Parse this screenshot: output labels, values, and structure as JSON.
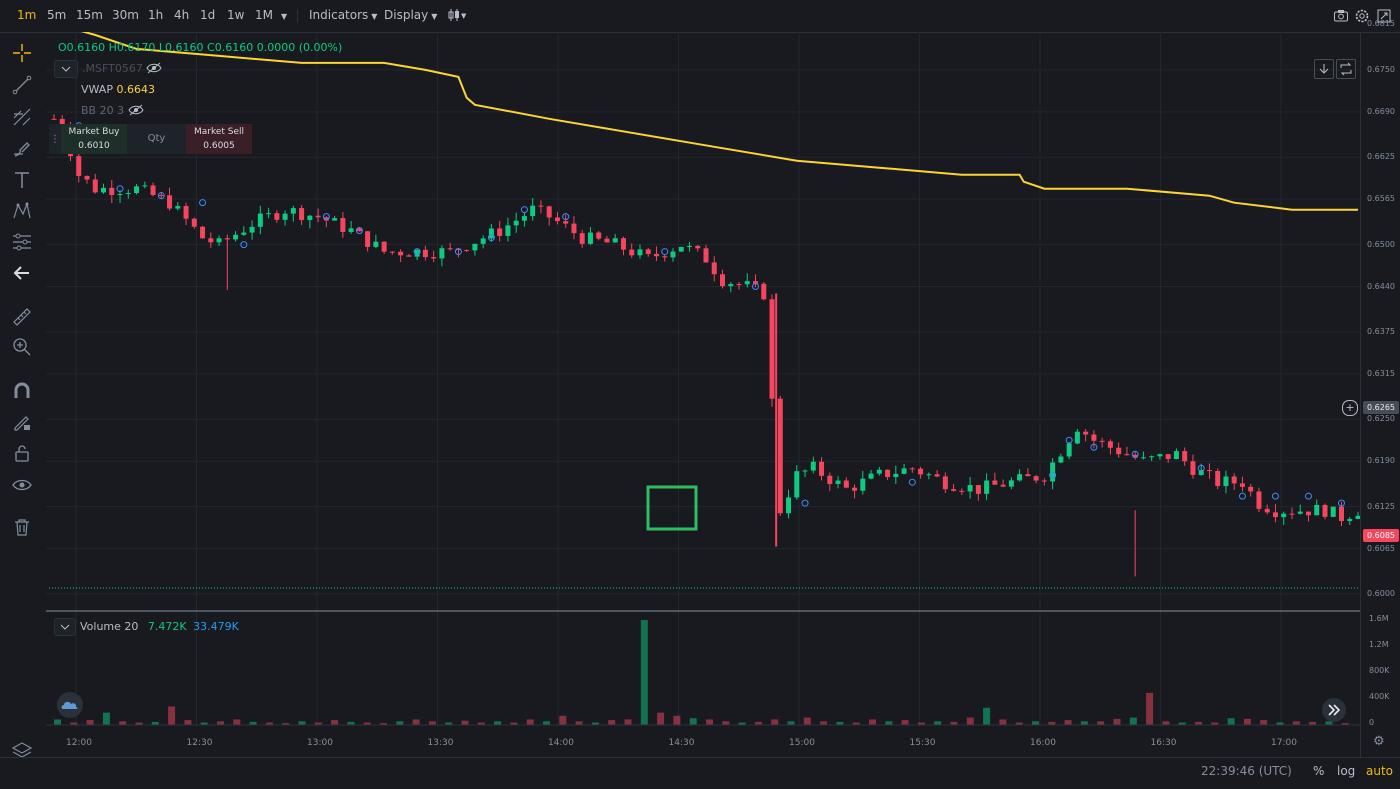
{
  "toolbar": {
    "timeframes": [
      "1m",
      "5m",
      "15m",
      "30m",
      "1h",
      "4h",
      "1d",
      "1w",
      "1M"
    ],
    "active_timeframe": "1m",
    "indicators_label": "Indicators",
    "display_label": "Display"
  },
  "legend": {
    "ohlc": {
      "o": "O0.6160",
      "h": "H0.6170",
      "l": "L0.6160",
      "c": "C0.6160",
      "change": "0.0000 (0.00%)"
    },
    "symbol_faded": ".MSFT0567",
    "vwap_label": "VWAP",
    "vwap_value": "0.6643",
    "bb_label": "BB 20 3"
  },
  "order_panel": {
    "buy_label": "Market Buy",
    "buy_price": "0.6010",
    "qty_label": "Qty",
    "sell_label": "Market Sell",
    "sell_price": "0.6005"
  },
  "volume_legend": {
    "label": "Volume 20",
    "value1": "7.472K",
    "value2": "33.479K"
  },
  "price_axis": {
    "ticks": [
      "0.6815",
      "0.6750",
      "0.6690",
      "0.6625",
      "0.6565",
      "0.6500",
      "0.6440",
      "0.6375",
      "0.6315",
      "0.6250",
      "0.6190",
      "0.6125",
      "0.6065",
      "0.6000"
    ],
    "marker_neutral": "0.6265",
    "marker_last": "0.6085"
  },
  "volume_axis": {
    "ticks": [
      "1.6M",
      "1.2M",
      "800K",
      "400K",
      "0"
    ]
  },
  "time_axis": {
    "ticks": [
      "12:00",
      "12:30",
      "13:00",
      "13:30",
      "14:00",
      "14:30",
      "15:00",
      "15:30",
      "16:00",
      "16:30",
      "17:00"
    ]
  },
  "status": {
    "clock": "22:39:46 (UTC)",
    "percent": "%",
    "log": "log",
    "auto": "auto"
  },
  "colors": {
    "up": "#0ecb81",
    "down": "#f6465d",
    "vwap": "#fcd535",
    "accent": "#f0b90b",
    "background": "#181a20",
    "highlight_box": "#2ebd5f"
  },
  "chart_data": {
    "type": "candlestick",
    "ylim": [
      0.6,
      0.684
    ],
    "vwap_points": [
      [
        0,
        0.682
      ],
      [
        2,
        0.681
      ],
      [
        5,
        0.68
      ],
      [
        10,
        0.678
      ],
      [
        20,
        0.677
      ],
      [
        30,
        0.676
      ],
      [
        40,
        0.676
      ],
      [
        45,
        0.675
      ],
      [
        49,
        0.674
      ],
      [
        50,
        0.671
      ],
      [
        51,
        0.67
      ],
      [
        60,
        0.668
      ],
      [
        70,
        0.666
      ],
      [
        80,
        0.664
      ],
      [
        90,
        0.662
      ],
      [
        100,
        0.661
      ],
      [
        110,
        0.66
      ],
      [
        115,
        0.66
      ],
      [
        117,
        0.66
      ],
      [
        117.5,
        0.659
      ],
      [
        120,
        0.658
      ],
      [
        130,
        0.658
      ],
      [
        140,
        0.657
      ],
      [
        143,
        0.656
      ],
      [
        150,
        0.655
      ],
      [
        158,
        0.655
      ]
    ],
    "close_path": [
      [
        0,
        0.668
      ],
      [
        1,
        0.667
      ],
      [
        3,
        0.66
      ],
      [
        5,
        0.658
      ],
      [
        8,
        0.658
      ],
      [
        10,
        0.658
      ],
      [
        14,
        0.656
      ],
      [
        18,
        0.651
      ],
      [
        20,
        0.65
      ],
      [
        24,
        0.653
      ],
      [
        28,
        0.655
      ],
      [
        32,
        0.654
      ],
      [
        36,
        0.652
      ],
      [
        40,
        0.649
      ],
      [
        44,
        0.649
      ],
      [
        48,
        0.649
      ],
      [
        50,
        0.65
      ],
      [
        54,
        0.652
      ],
      [
        58,
        0.655
      ],
      [
        60,
        0.654
      ],
      [
        64,
        0.651
      ],
      [
        68,
        0.65
      ],
      [
        72,
        0.648
      ],
      [
        76,
        0.65
      ],
      [
        79,
        0.648
      ],
      [
        81,
        0.645
      ],
      [
        84,
        0.644
      ],
      [
        86,
        0.643
      ],
      [
        88,
        0.612
      ],
      [
        90,
        0.617
      ],
      [
        92,
        0.618
      ],
      [
        96,
        0.615
      ],
      [
        100,
        0.617
      ],
      [
        104,
        0.618
      ],
      [
        108,
        0.616
      ],
      [
        112,
        0.615
      ],
      [
        116,
        0.616
      ],
      [
        120,
        0.617
      ],
      [
        124,
        0.624
      ],
      [
        126,
        0.622
      ],
      [
        128,
        0.621
      ],
      [
        132,
        0.619
      ],
      [
        136,
        0.62
      ],
      [
        138,
        0.618
      ],
      [
        141,
        0.616
      ],
      [
        144,
        0.616
      ],
      [
        146,
        0.613
      ],
      [
        148,
        0.612
      ],
      [
        150,
        0.612
      ],
      [
        152,
        0.612
      ],
      [
        154,
        0.612
      ],
      [
        156,
        0.611
      ],
      [
        158,
        0.612
      ]
    ],
    "volume_k": [
      90,
      40,
      80,
      200,
      60,
      40,
      50,
      300,
      80,
      40,
      60,
      90,
      50,
      40,
      30,
      60,
      40,
      80,
      50,
      40,
      30,
      60,
      90,
      60,
      40,
      70,
      40,
      60,
      40,
      90,
      60,
      150,
      60,
      40,
      80,
      90,
      1700,
      200,
      150,
      110,
      90,
      60,
      40,
      50,
      90,
      60,
      120,
      60,
      50,
      40,
      90,
      60,
      80,
      40,
      60,
      50,
      120,
      280,
      90,
      40,
      60,
      50,
      80,
      60,
      60,
      100,
      120,
      520,
      60,
      40,
      50,
      40,
      110,
      100,
      80,
      40,
      60,
      50,
      60,
      30
    ],
    "volume_color_split": "alternate_by_candle_direction"
  }
}
